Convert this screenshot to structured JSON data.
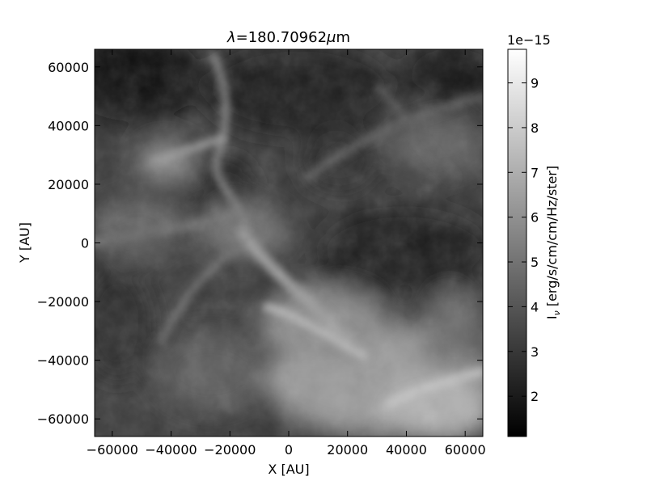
{
  "chart_data": {
    "type": "heatmap",
    "title": {
      "symbol": "λ",
      "text": "=180.70962",
      "unit_symbol": "μ",
      "unit": "m"
    },
    "xlabel": "X [AU]",
    "ylabel": "Y [AU]",
    "xlim": [
      -66000,
      66000
    ],
    "ylim": [
      -66000,
      66000
    ],
    "x_ticks": [
      -60000,
      -40000,
      -20000,
      0,
      20000,
      40000,
      60000
    ],
    "x_tick_labels": [
      "−60000",
      "−40000",
      "−20000",
      "0",
      "20000",
      "40000",
      "60000"
    ],
    "y_ticks": [
      60000,
      40000,
      20000,
      0,
      -20000,
      -40000,
      -60000
    ],
    "y_tick_labels": [
      "60000",
      "40000",
      "20000",
      "0",
      "−20000",
      "−40000",
      "−60000"
    ],
    "colormap": "gray",
    "grid": false,
    "colorbar": {
      "label_main": "I",
      "label_sub": "ν",
      "label_rest": " [erg/s/cm/cm/Hz/ster]",
      "offset_text": "1e−15",
      "range": [
        1.1,
        9.75
      ],
      "ticks": [
        2,
        3,
        4,
        5,
        6,
        7,
        8,
        9
      ],
      "tick_labels": [
        "2",
        "3",
        "4",
        "5",
        "6",
        "7",
        "8",
        "9"
      ]
    }
  }
}
